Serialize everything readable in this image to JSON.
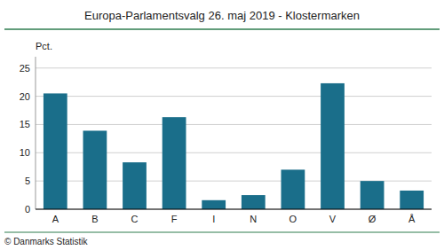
{
  "chart_data": {
    "type": "bar",
    "title": "Europa-Parlamentsvalg 26. maj 2019 - Klostermarken",
    "ylabel": "Pct.",
    "annotations": [
      "© Danmarks Statistik"
    ],
    "categories": [
      "A",
      "B",
      "C",
      "F",
      "I",
      "N",
      "O",
      "V",
      "Ø",
      "Å"
    ],
    "values": [
      20.5,
      13.9,
      8.3,
      16.3,
      1.6,
      2.5,
      7.0,
      22.3,
      5.0,
      3.3
    ],
    "color": "#1a6e8a",
    "ylim": [
      0,
      27
    ],
    "yticks": [
      0,
      5,
      10,
      15,
      20,
      25
    ],
    "grid": true
  }
}
